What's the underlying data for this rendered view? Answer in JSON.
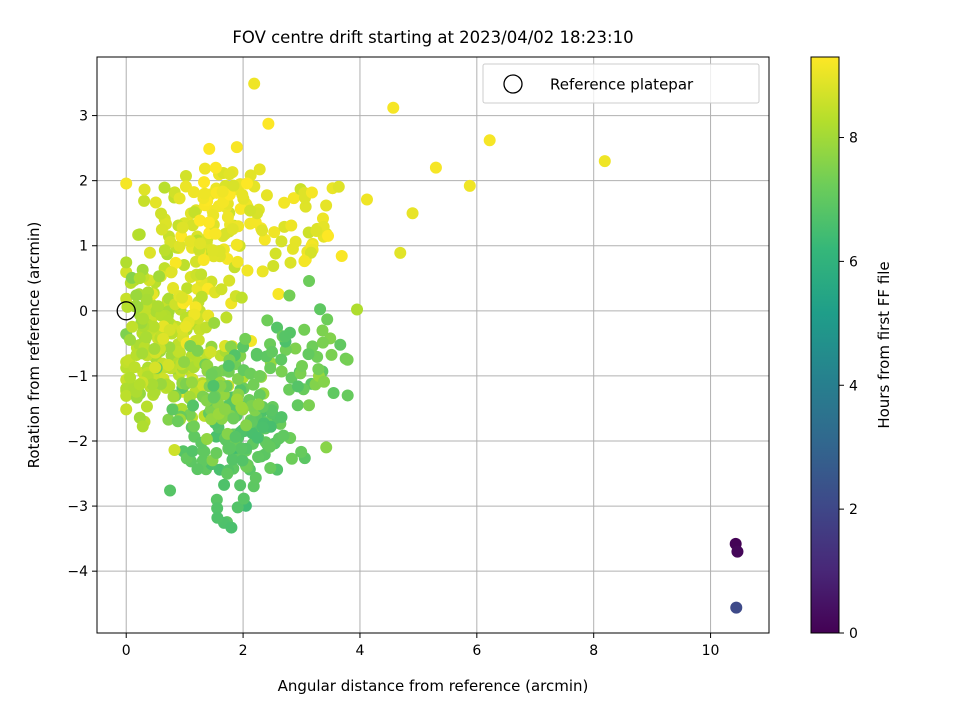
{
  "chart_data": {
    "type": "scatter",
    "title": "FOV centre drift starting at 2023/04/02 18:23:10",
    "xlabel": "Angular distance from reference (arcmin)",
    "ylabel": "Rotation from reference (arcmin)",
    "xlim": [
      -0.5,
      11.0
    ],
    "ylim": [
      -4.95,
      3.9
    ],
    "xticks": [
      0,
      2,
      4,
      6,
      8,
      10
    ],
    "yticks": [
      -4,
      -3,
      -2,
      -1,
      0,
      1,
      2,
      3
    ],
    "grid": true,
    "legend": {
      "position": "top-right",
      "entries": [
        "Reference platepar"
      ]
    },
    "reference_point": {
      "x": 0.0,
      "y": 0.0,
      "marker": "open-circle"
    },
    "colorbar": {
      "label": "Hours from first FF file",
      "range": [
        0,
        9.3
      ],
      "ticks": [
        0,
        2,
        4,
        6,
        8
      ],
      "colormap": "viridis"
    },
    "outliers": [
      {
        "x": 10.43,
        "y": -3.58,
        "hours": 0.05
      },
      {
        "x": 10.46,
        "y": -3.7,
        "hours": 0.15
      },
      {
        "x": 10.44,
        "y": -4.56,
        "hours": 2.1
      }
    ],
    "cluster_summary": {
      "n_points": 620,
      "x_range": [
        0.0,
        8.2
      ],
      "y_range": [
        -3.35,
        3.5
      ],
      "hours_range": [
        6.3,
        9.3
      ],
      "note_trend": "points at y > 0.5 are mostly 8.5-9.3 h; points at y < -1.5 are mostly 6.3-7 h"
    },
    "highlighted_points": [
      {
        "x": 2.19,
        "y": 3.49,
        "hours": 9.1
      },
      {
        "x": 4.57,
        "y": 3.12,
        "hours": 9.2
      },
      {
        "x": 6.22,
        "y": 2.62,
        "hours": 9.2
      },
      {
        "x": 8.19,
        "y": 2.3,
        "hours": 9.1
      },
      {
        "x": 5.88,
        "y": 1.92,
        "hours": 9.1
      },
      {
        "x": 5.3,
        "y": 2.2,
        "hours": 9.2
      },
      {
        "x": 4.12,
        "y": 1.71,
        "hours": 9.1
      },
      {
        "x": 4.9,
        "y": 1.5,
        "hours": 9.0
      },
      {
        "x": 4.69,
        "y": 0.89,
        "hours": 8.9
      },
      {
        "x": 3.95,
        "y": 0.02,
        "hours": 8.2
      },
      {
        "x": 3.79,
        "y": -1.3,
        "hours": 7.1
      },
      {
        "x": 1.56,
        "y": -3.18,
        "hours": 6.7
      },
      {
        "x": 1.8,
        "y": -3.33,
        "hours": 6.6
      },
      {
        "x": 0.75,
        "y": -2.76,
        "hours": 6.8
      },
      {
        "x": 0.02,
        "y": 0.06,
        "hours": 8.3
      }
    ]
  }
}
